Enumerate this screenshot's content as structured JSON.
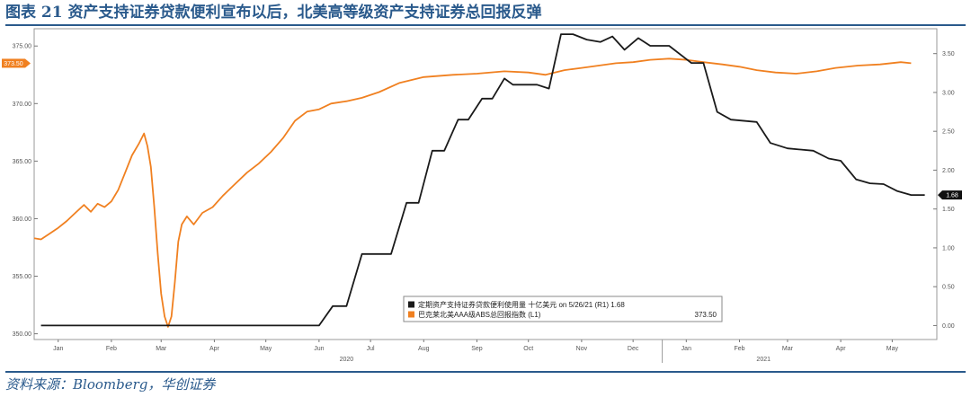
{
  "figure": {
    "title": "图表 21  资产支持证券贷款便利宣布以后，北美高等级资产支持证券总回报反弹",
    "source": "资料来源：Bloomberg，华创证券"
  },
  "chart_data": {
    "type": "line",
    "x_type": "date",
    "x_start": "2020-01-01",
    "x_end": "2021-06-10",
    "month_ticks": [
      {
        "label": "Jan",
        "date": "2020-01-15"
      },
      {
        "label": "Feb",
        "date": "2020-02-15"
      },
      {
        "label": "Mar",
        "date": "2020-03-15"
      },
      {
        "label": "Apr",
        "date": "2020-04-15"
      },
      {
        "label": "May",
        "date": "2020-05-15"
      },
      {
        "label": "Jun",
        "date": "2020-06-15"
      },
      {
        "label": "Jul",
        "date": "2020-07-15"
      },
      {
        "label": "Aug",
        "date": "2020-08-15"
      },
      {
        "label": "Sep",
        "date": "2020-09-15"
      },
      {
        "label": "Oct",
        "date": "2020-10-15"
      },
      {
        "label": "Nov",
        "date": "2020-11-15"
      },
      {
        "label": "Dec",
        "date": "2020-12-15"
      },
      {
        "label": "Jan",
        "date": "2021-01-15"
      },
      {
        "label": "Feb",
        "date": "2021-02-15"
      },
      {
        "label": "Mar",
        "date": "2021-03-15"
      },
      {
        "label": "Apr",
        "date": "2021-04-15"
      },
      {
        "label": "May",
        "date": "2021-05-15"
      }
    ],
    "year_ticks": [
      {
        "label": "2020",
        "date": "2020-07-01"
      },
      {
        "label": "2021",
        "date": "2021-03-01"
      }
    ],
    "year_boundary": "2021-01-01",
    "left_axis": {
      "ticks": [
        "350.00",
        "355.00",
        "360.00",
        "365.00",
        "370.00",
        "375.00"
      ],
      "ylim": [
        349.5,
        376.5
      ]
    },
    "right_axis": {
      "ticks": [
        "0.00",
        "0.50",
        "1.00",
        "1.50",
        "2.00",
        "2.50",
        "3.00",
        "3.50"
      ],
      "ylim": [
        -0.18,
        3.82
      ]
    },
    "grid": false,
    "legend_position": "bottom-center",
    "series": [
      {
        "name": "巴克莱北美AAA级ABS总回报指数 (L1)",
        "axis": "left",
        "color": "#f08020",
        "last_label": "373.50",
        "legend_value": "373.50",
        "points": [
          [
            "2020-01-01",
            358.3
          ],
          [
            "2020-01-05",
            358.2
          ],
          [
            "2020-01-10",
            358.7
          ],
          [
            "2020-01-15",
            359.2
          ],
          [
            "2020-01-20",
            359.8
          ],
          [
            "2020-01-25",
            360.5
          ],
          [
            "2020-01-30",
            361.2
          ],
          [
            "2020-02-03",
            360.6
          ],
          [
            "2020-02-07",
            361.3
          ],
          [
            "2020-02-11",
            361.0
          ],
          [
            "2020-02-15",
            361.5
          ],
          [
            "2020-02-19",
            362.5
          ],
          [
            "2020-02-23",
            364.0
          ],
          [
            "2020-02-27",
            365.5
          ],
          [
            "2020-03-02",
            366.5
          ],
          [
            "2020-03-05",
            367.4
          ],
          [
            "2020-03-07",
            366.3
          ],
          [
            "2020-03-09",
            364.5
          ],
          [
            "2020-03-11",
            361.0
          ],
          [
            "2020-03-13",
            357.0
          ],
          [
            "2020-03-15",
            353.5
          ],
          [
            "2020-03-17",
            351.5
          ],
          [
            "2020-03-19",
            350.6
          ],
          [
            "2020-03-21",
            351.5
          ],
          [
            "2020-03-23",
            354.5
          ],
          [
            "2020-03-25",
            358.0
          ],
          [
            "2020-03-27",
            359.5
          ],
          [
            "2020-03-30",
            360.2
          ],
          [
            "2020-04-03",
            359.5
          ],
          [
            "2020-04-08",
            360.5
          ],
          [
            "2020-04-14",
            361.0
          ],
          [
            "2020-04-20",
            362.0
          ],
          [
            "2020-04-27",
            363.0
          ],
          [
            "2020-05-04",
            364.0
          ],
          [
            "2020-05-11",
            364.8
          ],
          [
            "2020-05-18",
            365.8
          ],
          [
            "2020-05-25",
            367.0
          ],
          [
            "2020-06-01",
            368.5
          ],
          [
            "2020-06-08",
            369.3
          ],
          [
            "2020-06-15",
            369.5
          ],
          [
            "2020-06-22",
            370.0
          ],
          [
            "2020-07-01",
            370.2
          ],
          [
            "2020-07-10",
            370.5
          ],
          [
            "2020-07-20",
            371.0
          ],
          [
            "2020-08-01",
            371.8
          ],
          [
            "2020-08-15",
            372.3
          ],
          [
            "2020-09-01",
            372.5
          ],
          [
            "2020-09-15",
            372.6
          ],
          [
            "2020-10-01",
            372.8
          ],
          [
            "2020-10-15",
            372.7
          ],
          [
            "2020-10-25",
            372.5
          ],
          [
            "2020-11-05",
            372.9
          ],
          [
            "2020-11-15",
            373.1
          ],
          [
            "2020-11-25",
            373.3
          ],
          [
            "2020-12-05",
            373.5
          ],
          [
            "2020-12-15",
            373.6
          ],
          [
            "2020-12-25",
            373.8
          ],
          [
            "2021-01-05",
            373.9
          ],
          [
            "2021-01-15",
            373.8
          ],
          [
            "2021-01-25",
            373.6
          ],
          [
            "2021-02-05",
            373.4
          ],
          [
            "2021-02-15",
            373.2
          ],
          [
            "2021-02-25",
            372.9
          ],
          [
            "2021-03-08",
            372.7
          ],
          [
            "2021-03-20",
            372.6
          ],
          [
            "2021-04-01",
            372.8
          ],
          [
            "2021-04-12",
            373.1
          ],
          [
            "2021-04-25",
            373.3
          ],
          [
            "2021-05-08",
            373.4
          ],
          [
            "2021-05-20",
            373.6
          ],
          [
            "2021-05-26",
            373.5
          ]
        ]
      },
      {
        "name": "定期资产支持证券贷款便利使用量 十亿美元 on 5/26/21 (R1) 1.68",
        "axis": "right",
        "color": "#1a1a1a",
        "last_label": "1.68",
        "points": [
          [
            "2020-01-05",
            0.0
          ],
          [
            "2020-06-15",
            0.0
          ],
          [
            "2020-06-23",
            0.25
          ],
          [
            "2020-07-01",
            0.25
          ],
          [
            "2020-07-10",
            0.92
          ],
          [
            "2020-07-27",
            0.92
          ],
          [
            "2020-08-05",
            1.58
          ],
          [
            "2020-08-12",
            1.58
          ],
          [
            "2020-08-20",
            2.25
          ],
          [
            "2020-08-27",
            2.25
          ],
          [
            "2020-09-04",
            2.65
          ],
          [
            "2020-09-10",
            2.65
          ],
          [
            "2020-09-18",
            2.92
          ],
          [
            "2020-09-24",
            2.92
          ],
          [
            "2020-10-01",
            3.18
          ],
          [
            "2020-10-06",
            3.1
          ],
          [
            "2020-10-20",
            3.1
          ],
          [
            "2020-10-27",
            3.05
          ],
          [
            "2020-11-03",
            3.75
          ],
          [
            "2020-11-10",
            3.75
          ],
          [
            "2020-11-18",
            3.68
          ],
          [
            "2020-11-26",
            3.65
          ],
          [
            "2020-12-03",
            3.72
          ],
          [
            "2020-12-10",
            3.55
          ],
          [
            "2020-12-18",
            3.7
          ],
          [
            "2020-12-25",
            3.6
          ],
          [
            "2021-01-05",
            3.6
          ],
          [
            "2021-01-18",
            3.38
          ],
          [
            "2021-01-25",
            3.38
          ],
          [
            "2021-02-02",
            2.75
          ],
          [
            "2021-02-10",
            2.65
          ],
          [
            "2021-02-25",
            2.62
          ],
          [
            "2021-03-05",
            2.35
          ],
          [
            "2021-03-15",
            2.28
          ],
          [
            "2021-03-30",
            2.25
          ],
          [
            "2021-04-08",
            2.15
          ],
          [
            "2021-04-15",
            2.12
          ],
          [
            "2021-04-24",
            1.88
          ],
          [
            "2021-05-02",
            1.83
          ],
          [
            "2021-05-10",
            1.82
          ],
          [
            "2021-05-18",
            1.73
          ],
          [
            "2021-05-26",
            1.68
          ],
          [
            "2021-06-03",
            1.68
          ]
        ]
      }
    ]
  }
}
